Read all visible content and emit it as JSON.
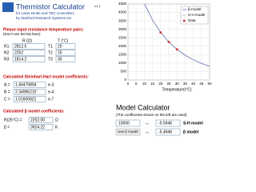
{
  "header": {
    "title": "Thermistor Calculator",
    "version": "v1.1",
    "subtitle": "for Laser Diode and TEC Controllers",
    "company": "by Stanford Research Systems Inc."
  },
  "inputs": {
    "prompt": "Please input resistance temperature pairs:",
    "note": "(Don't use the kΩ here)",
    "r_header": "R (Ω)",
    "t_header": "T (°C)",
    "rows": [
      {
        "r_label": "R1",
        "r": "2812.5",
        "t_label": "T1",
        "t": "20"
      },
      {
        "r_label": "R2",
        "r": "2252",
        "t_label": "T2",
        "t": "25"
      },
      {
        "r_label": "R3",
        "r": "1814.2",
        "t_label": "T3",
        "t": "30"
      }
    ]
  },
  "sh_coefficients": {
    "heading": "Calculated Steinhart-Hart model coefficients:",
    "rows": [
      {
        "label": "A =",
        "value": "1.46479804",
        "exponent": "e-3"
      },
      {
        "label": "B =",
        "value": "2.34996210",
        "exponent": "e-4"
      },
      {
        "label": "C =",
        "value": "1.01600821",
        "exponent": "e-7"
      }
    ]
  },
  "beta_coefficients": {
    "heading": "Calculated β model coefficients:",
    "rows": [
      {
        "label": "R(25°C) =",
        "value": "2252.00",
        "unit": "Ω"
      },
      {
        "label": "β =",
        "value": "3924.22",
        "unit": "K"
      }
    ]
  },
  "chart_data": {
    "type": "line",
    "x_label": "Temperature(°C)",
    "xlim": [
      0,
      50
    ],
    "ylim": [
      0,
      4500
    ],
    "xticks": [
      0,
      5,
      10,
      15,
      20,
      25,
      30,
      35,
      40,
      45,
      50
    ],
    "yticks": [
      0,
      500,
      1000,
      1500,
      2000,
      2500,
      3000,
      3500,
      4000,
      4500
    ],
    "grid": true,
    "legend": "top-right",
    "series": [
      {
        "name": "β-model",
        "color": "#4a6fc9",
        "x": [
          10,
          15,
          20,
          25,
          30,
          35,
          40,
          45,
          50
        ],
        "values": [
          4522,
          3556,
          2819,
          2252,
          1813,
          1469,
          1199,
          985,
          813
        ]
      },
      {
        "name": "S-H model",
        "color": "#888888",
        "x": [
          10,
          15,
          20,
          25,
          30,
          35,
          40,
          45,
          50
        ],
        "values": [
          4530,
          3560,
          2812,
          2252,
          1814,
          1471,
          1202,
          988,
          817
        ]
      },
      {
        "name": "Data",
        "color": "#d03030",
        "x": [
          20,
          25,
          30
        ],
        "values": [
          2812.5,
          2252,
          1814.2
        ]
      }
    ]
  },
  "calculator": {
    "title": "Model Calculator",
    "note": "(The coefficients shown on the left are used)",
    "input": "10000",
    "sh_result": "-5.5948",
    "sh_label": "S-H model",
    "beta_button": "Use β model",
    "beta_result": "-5.4948",
    "beta_label": "β model"
  }
}
